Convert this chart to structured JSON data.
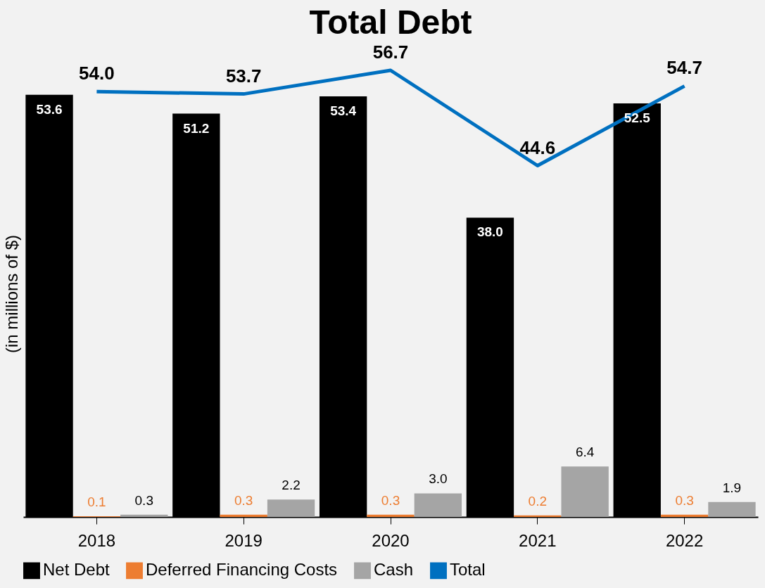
{
  "chart_data": {
    "type": "bar",
    "title": "Total Debt",
    "ylabel": "(in millions of $)",
    "categories": [
      "2018",
      "2019",
      "2020",
      "2021",
      "2022"
    ],
    "series": [
      {
        "name": "Net Debt",
        "color": "#000000",
        "values": [
          53.6,
          51.2,
          53.4,
          38.0,
          52.5
        ],
        "value_labels": [
          "53.6",
          "51.2",
          "53.4",
          "38.0",
          "52.5"
        ]
      },
      {
        "name": "Deferred Financing Costs",
        "color": "#ed7d31",
        "values": [
          0.1,
          0.3,
          0.3,
          0.2,
          0.3
        ],
        "value_labels": [
          "0.1",
          "0.3",
          "0.3",
          "0.2",
          "0.3"
        ]
      },
      {
        "name": "Cash",
        "color": "#a5a5a5",
        "values": [
          0.3,
          2.2,
          3.0,
          6.4,
          1.9
        ],
        "value_labels": [
          "0.3",
          "2.2",
          "3.0",
          "6.4",
          "1.9"
        ]
      },
      {
        "name": "Total",
        "type": "line",
        "color": "#0070c0",
        "values": [
          54.0,
          53.7,
          56.7,
          44.6,
          54.7
        ],
        "value_labels": [
          "54.0",
          "53.7",
          "56.7",
          "44.6",
          "54.7"
        ]
      }
    ],
    "legend": "bottom",
    "grid": false
  }
}
